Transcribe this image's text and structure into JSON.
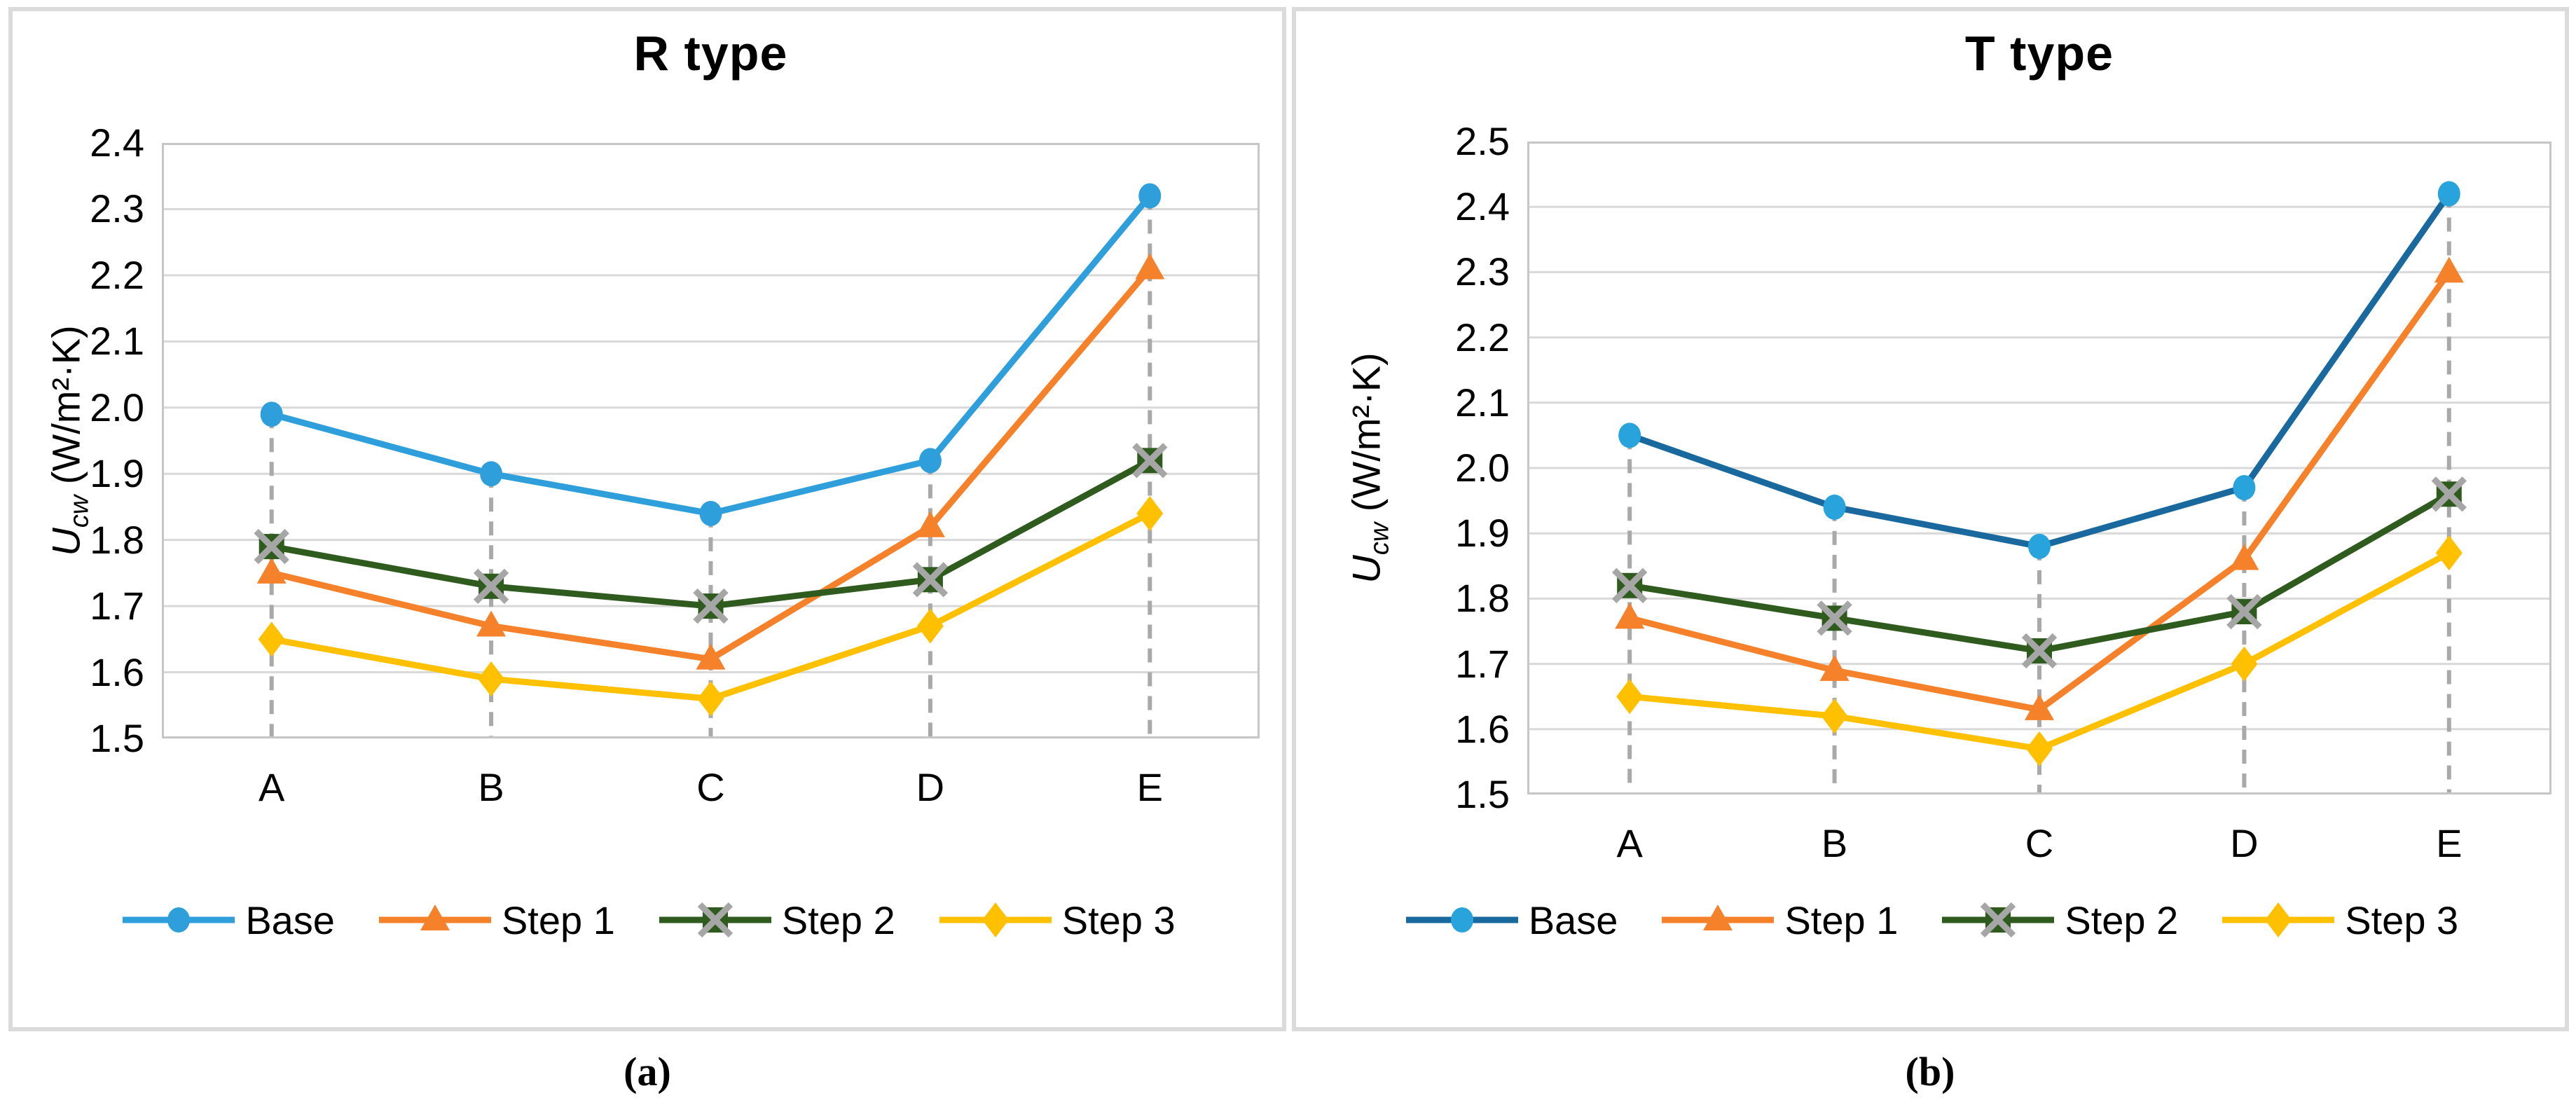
{
  "figure": {
    "captions": {
      "a": "(a)",
      "b": "(b)"
    }
  },
  "colors": {
    "gridline": "#D9D9D9",
    "plot_border": "#C6C6C6",
    "dropline": "#A9A9A9",
    "panel_border": "#DBDBDB",
    "blue_light": "#2E9FDA",
    "blue_dark": "#19699F",
    "orange": "#F5812B",
    "green_dark": "#2F5B1F",
    "gray_x": "#A6A6A6",
    "yellow": "#FFC000"
  },
  "chart_data": [
    {
      "type": "line",
      "title": "R type",
      "panel_caption": "(a)",
      "categories": [
        "A",
        "B",
        "C",
        "D",
        "E"
      ],
      "ylim": [
        1.5,
        2.4
      ],
      "y_tick_step": 0.1,
      "y_ticks": [
        "2.4",
        "2.3",
        "2.2",
        "2.1",
        "2.0",
        "1.9",
        "1.8",
        "1.7",
        "1.6",
        "1.5"
      ],
      "ylabel": {
        "symbol": "U",
        "subscript": "cw",
        "unit": "(W/m²·K)"
      },
      "xlabel": "",
      "grid": "horizontal-only",
      "droplines": "dashed vertical from Base series point to x-axis",
      "legend_position": "bottom",
      "series": [
        {
          "name": "Base",
          "marker": "circle",
          "line_color": "#2E9FDA",
          "marker_color": "#2E9FDA",
          "values": [
            1.99,
            1.9,
            1.84,
            1.92,
            2.32
          ]
        },
        {
          "name": "Step 1",
          "marker": "triangle",
          "line_color": "#F5812B",
          "marker_color": "#F5812B",
          "values": [
            1.75,
            1.67,
            1.62,
            1.82,
            2.21
          ]
        },
        {
          "name": "Step 2",
          "marker": "square-x",
          "line_color": "#2F5B1F",
          "marker_color": "#2F5B1F",
          "marker_x_color": "#A6A6A6",
          "values": [
            1.79,
            1.73,
            1.7,
            1.74,
            1.92
          ]
        },
        {
          "name": "Step 3",
          "marker": "diamond",
          "line_color": "#FFC000",
          "marker_color": "#FFC000",
          "values": [
            1.65,
            1.59,
            1.56,
            1.67,
            1.84
          ]
        }
      ]
    },
    {
      "type": "line",
      "title": "T type",
      "panel_caption": "(b)",
      "categories": [
        "A",
        "B",
        "C",
        "D",
        "E"
      ],
      "ylim": [
        1.5,
        2.5
      ],
      "y_tick_step": 0.1,
      "y_ticks": [
        "2.5",
        "2.4",
        "2.3",
        "2.2",
        "2.1",
        "2.0",
        "1.9",
        "1.8",
        "1.7",
        "1.6",
        "1.5"
      ],
      "ylabel": {
        "symbol": "U",
        "subscript": "cw",
        "unit": "(W/m²·K)"
      },
      "xlabel": "",
      "grid": "horizontal-only",
      "droplines": "dashed vertical from Base series point to x-axis",
      "legend_position": "bottom",
      "series": [
        {
          "name": "Base",
          "marker": "circle",
          "line_color": "#19699F",
          "marker_color": "#29A3DC",
          "values": [
            2.05,
            1.94,
            1.88,
            1.97,
            2.42
          ]
        },
        {
          "name": "Step 1",
          "marker": "triangle",
          "line_color": "#F5812B",
          "marker_color": "#F5812B",
          "values": [
            1.77,
            1.69,
            1.63,
            1.86,
            2.3
          ]
        },
        {
          "name": "Step 2",
          "marker": "square-x",
          "line_color": "#2F5B1F",
          "marker_color": "#2F5B1F",
          "marker_x_color": "#A6A6A6",
          "values": [
            1.82,
            1.77,
            1.72,
            1.78,
            1.96
          ]
        },
        {
          "name": "Step 3",
          "marker": "diamond",
          "line_color": "#FFC000",
          "marker_color": "#FFC000",
          "values": [
            1.65,
            1.62,
            1.57,
            1.7,
            1.87
          ]
        }
      ]
    }
  ]
}
